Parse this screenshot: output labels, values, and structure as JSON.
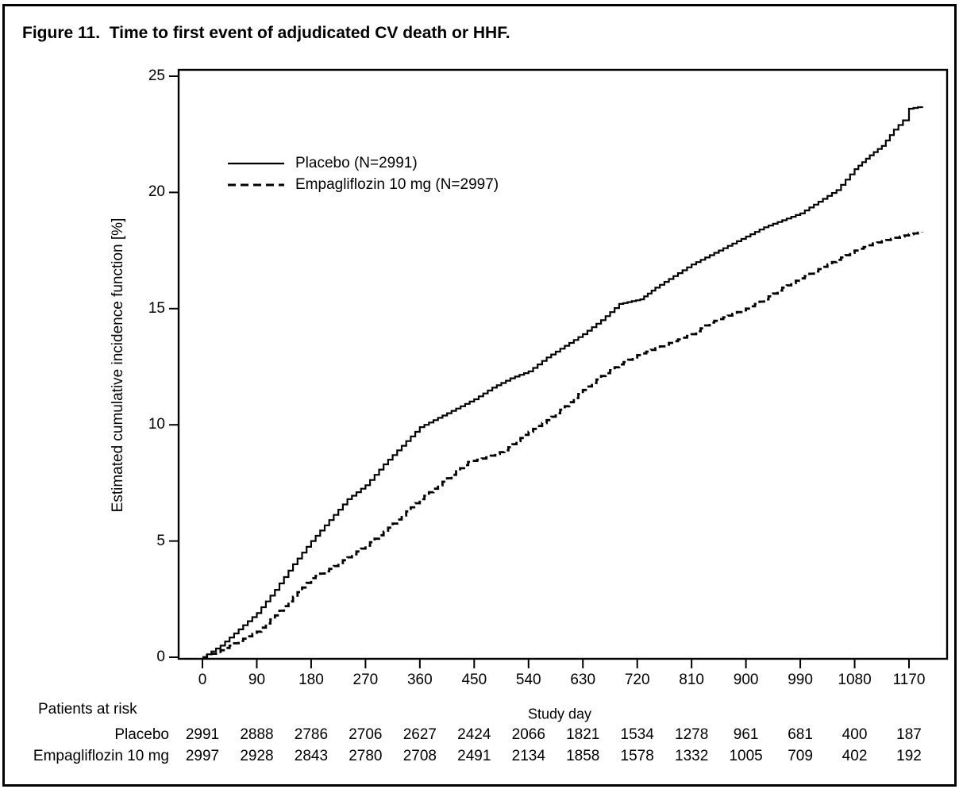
{
  "title": "Figure 11.  Time to first event of adjudicated CV death or HHF.",
  "chart_data": {
    "type": "line",
    "subtype": "step-cumulative-incidence",
    "title": "Time to first event of adjudicated CV death or HHF",
    "xlabel": "Study day",
    "ylabel": "Estimated cumulative incidence function [%]",
    "x_ticks": [
      0,
      90,
      180,
      270,
      360,
      450,
      540,
      630,
      720,
      810,
      900,
      990,
      1080,
      1170
    ],
    "y_ticks": [
      0,
      5,
      10,
      15,
      20,
      25
    ],
    "ylim": [
      0,
      25
    ],
    "xlim": [
      0,
      1234
    ],
    "grid": false,
    "legend_position": "upper-left-inside",
    "line_color": "#000000",
    "series": [
      {
        "name": "Placebo (N=2991)",
        "line_style": "solid",
        "color": "#000000",
        "points": [
          [
            0,
            0
          ],
          [
            30,
            0.5
          ],
          [
            60,
            1.2
          ],
          [
            90,
            1.9
          ],
          [
            120,
            2.9
          ],
          [
            150,
            4.0
          ],
          [
            180,
            5.0
          ],
          [
            210,
            5.9
          ],
          [
            240,
            6.8
          ],
          [
            270,
            7.4
          ],
          [
            300,
            8.3
          ],
          [
            330,
            9.1
          ],
          [
            360,
            9.9
          ],
          [
            390,
            10.3
          ],
          [
            420,
            10.7
          ],
          [
            450,
            11.1
          ],
          [
            480,
            11.6
          ],
          [
            510,
            12.0
          ],
          [
            540,
            12.3
          ],
          [
            570,
            12.9
          ],
          [
            600,
            13.4
          ],
          [
            630,
            13.9
          ],
          [
            660,
            14.5
          ],
          [
            690,
            15.2
          ],
          [
            725,
            15.4
          ],
          [
            750,
            15.9
          ],
          [
            780,
            16.4
          ],
          [
            810,
            16.9
          ],
          [
            840,
            17.3
          ],
          [
            870,
            17.7
          ],
          [
            900,
            18.1
          ],
          [
            930,
            18.5
          ],
          [
            960,
            18.8
          ],
          [
            990,
            19.1
          ],
          [
            1020,
            19.6
          ],
          [
            1050,
            20.1
          ],
          [
            1080,
            21.0
          ],
          [
            1105,
            21.6
          ],
          [
            1125,
            22.0
          ],
          [
            1145,
            22.7
          ],
          [
            1160,
            23.1
          ],
          [
            1170,
            23.6
          ],
          [
            1192,
            23.7
          ]
        ]
      },
      {
        "name": "Empagliflozin 10 mg (N=2997)",
        "line_style": "dashed",
        "color": "#000000",
        "points": [
          [
            0,
            0
          ],
          [
            30,
            0.3
          ],
          [
            60,
            0.7
          ],
          [
            90,
            1.1
          ],
          [
            120,
            1.8
          ],
          [
            150,
            2.6
          ],
          [
            180,
            3.4
          ],
          [
            210,
            3.8
          ],
          [
            240,
            4.3
          ],
          [
            270,
            4.8
          ],
          [
            300,
            5.4
          ],
          [
            330,
            6.1
          ],
          [
            360,
            6.8
          ],
          [
            390,
            7.4
          ],
          [
            420,
            8.0
          ],
          [
            440,
            8.4
          ],
          [
            470,
            8.6
          ],
          [
            500,
            8.9
          ],
          [
            540,
            9.7
          ],
          [
            570,
            10.2
          ],
          [
            600,
            10.8
          ],
          [
            630,
            11.5
          ],
          [
            660,
            12.1
          ],
          [
            690,
            12.6
          ],
          [
            720,
            13.0
          ],
          [
            750,
            13.3
          ],
          [
            780,
            13.6
          ],
          [
            810,
            13.9
          ],
          [
            840,
            14.4
          ],
          [
            870,
            14.7
          ],
          [
            900,
            15.0
          ],
          [
            930,
            15.4
          ],
          [
            960,
            15.9
          ],
          [
            990,
            16.3
          ],
          [
            1020,
            16.7
          ],
          [
            1050,
            17.1
          ],
          [
            1080,
            17.5
          ],
          [
            1110,
            17.8
          ],
          [
            1140,
            18.0
          ],
          [
            1170,
            18.2
          ],
          [
            1192,
            18.3
          ]
        ]
      }
    ],
    "risk_table": {
      "header": "Patients at risk",
      "time_points": [
        0,
        90,
        180,
        270,
        360,
        450,
        540,
        630,
        720,
        810,
        900,
        990,
        1080,
        1170
      ],
      "rows": [
        {
          "label": "Placebo",
          "values": [
            "2991",
            "2888",
            "2786",
            "2706",
            "2627",
            "2424",
            "2066",
            "1821",
            "1534",
            "1278",
            "961",
            "681",
            "400",
            "187"
          ]
        },
        {
          "label": "Empagliflozin 10 mg",
          "values": [
            "2997",
            "2928",
            "2843",
            "2780",
            "2708",
            "2491",
            "2134",
            "1858",
            "1578",
            "1332",
            "1005",
            "709",
            "402",
            "192"
          ]
        }
      ]
    }
  }
}
